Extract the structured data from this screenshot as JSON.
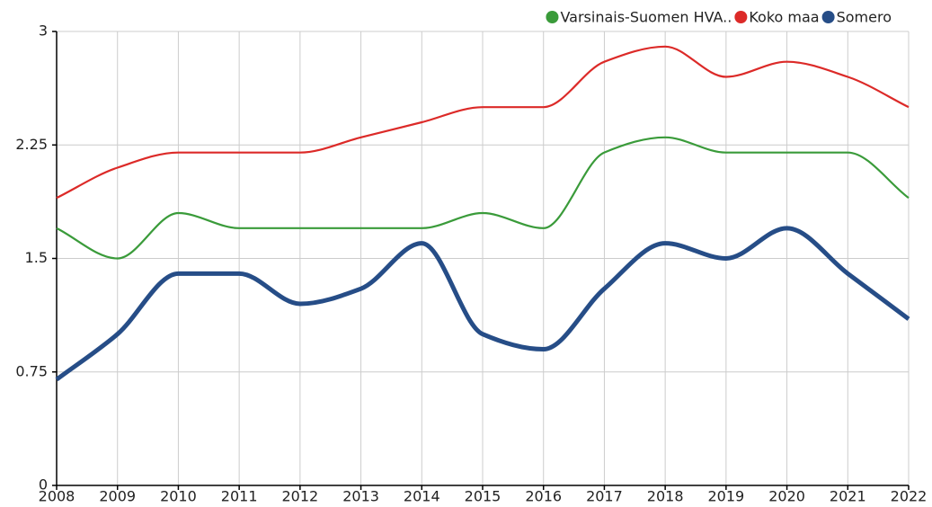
{
  "chart_data": {
    "type": "line",
    "x": [
      2008,
      2009,
      2010,
      2011,
      2012,
      2013,
      2014,
      2015,
      2016,
      2017,
      2018,
      2019,
      2020,
      2021,
      2022
    ],
    "series": [
      {
        "name": "Varsinais-Suomen HVA..",
        "color": "#3a9b3a",
        "values": [
          1.7,
          1.5,
          1.8,
          1.7,
          1.7,
          1.7,
          1.7,
          1.8,
          1.7,
          2.2,
          2.3,
          2.2,
          2.2,
          2.2,
          1.9
        ]
      },
      {
        "name": "Koko maa",
        "color": "#dc2a28",
        "values": [
          1.9,
          2.1,
          2.2,
          2.2,
          2.2,
          2.3,
          2.4,
          2.5,
          2.5,
          2.8,
          2.9,
          2.7,
          2.8,
          2.7,
          2.5
        ]
      },
      {
        "name": "Somero",
        "color": "#264d87",
        "values": [
          0.7,
          1.0,
          1.4,
          1.4,
          1.2,
          1.3,
          1.6,
          1.0,
          0.9,
          1.3,
          1.6,
          1.5,
          1.7,
          1.4,
          1.1
        ]
      }
    ],
    "xlim": [
      2008,
      2022
    ],
    "xticks": [
      2008,
      2009,
      2010,
      2011,
      2012,
      2013,
      2014,
      2015,
      2016,
      2017,
      2018,
      2019,
      2020,
      2021,
      2022
    ],
    "ylim": [
      0,
      3
    ],
    "yticks": [
      0,
      0.75,
      1.5,
      2.25,
      3
    ],
    "grid": true,
    "legend": "top-right"
  }
}
